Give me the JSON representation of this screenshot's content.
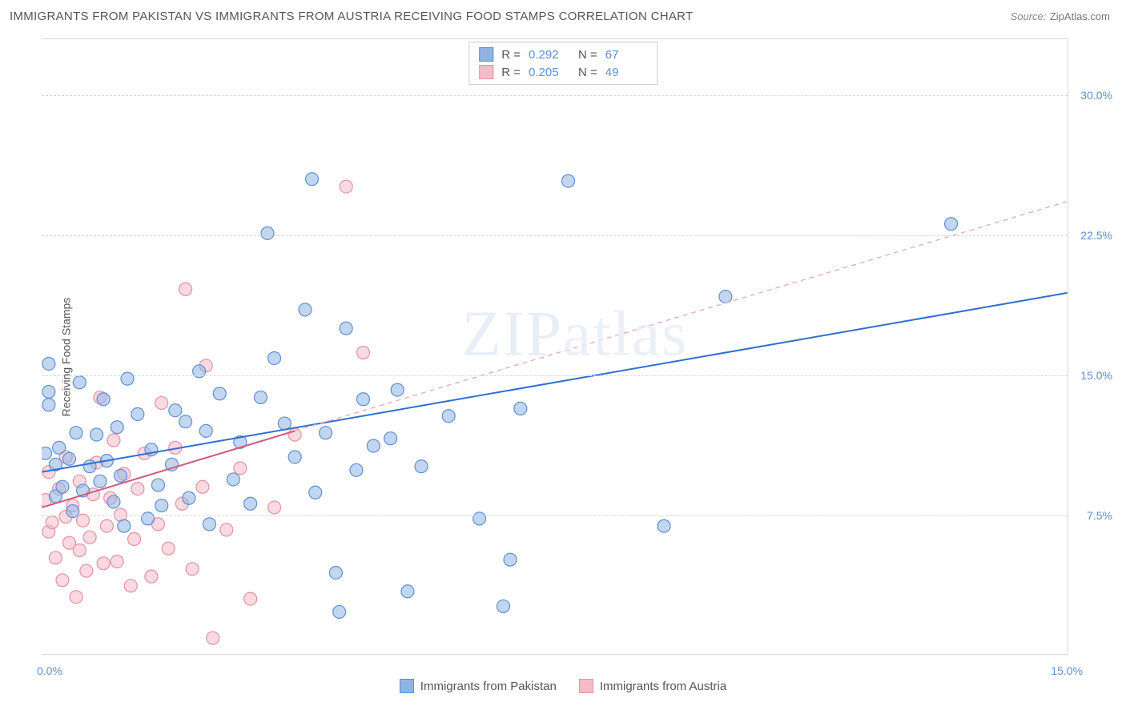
{
  "title": "IMMIGRANTS FROM PAKISTAN VS IMMIGRANTS FROM AUSTRIA RECEIVING FOOD STAMPS CORRELATION CHART",
  "source_label": "Source:",
  "source_name": "ZipAtlas.com",
  "y_axis_label": "Receiving Food Stamps",
  "watermark": "ZIPatlas",
  "chart": {
    "type": "scatter",
    "xlim": [
      0,
      15
    ],
    "ylim": [
      0,
      33
    ],
    "x_ticks": [
      {
        "v": 0,
        "label": "0.0%"
      },
      {
        "v": 15,
        "label": "15.0%"
      }
    ],
    "y_ticks": [
      {
        "v": 7.5,
        "label": "7.5%"
      },
      {
        "v": 15,
        "label": "15.0%"
      },
      {
        "v": 22.5,
        "label": "22.5%"
      },
      {
        "v": 30,
        "label": "30.0%"
      }
    ],
    "grid_color": "#d5d5d5",
    "background_color": "#ffffff",
    "marker_radius": 8,
    "marker_opacity": 0.55,
    "series": [
      {
        "name": "Immigrants from Pakistan",
        "color": "#8fb4e3",
        "stroke": "#5b8fd6",
        "r_label": "R =",
        "r_value": "0.292",
        "n_label": "N =",
        "n_value": "67",
        "trend": {
          "x1": 0,
          "y1": 9.8,
          "x2": 15,
          "y2": 19.4,
          "color": "#2e6fd1",
          "dash": "none",
          "width": 2
        },
        "points": [
          [
            0.05,
            10.8
          ],
          [
            0.1,
            13.4
          ],
          [
            0.1,
            14.1
          ],
          [
            0.1,
            15.6
          ],
          [
            0.2,
            8.5
          ],
          [
            0.2,
            10.2
          ],
          [
            0.25,
            11.1
          ],
          [
            0.3,
            9.0
          ],
          [
            0.4,
            10.5
          ],
          [
            0.45,
            7.7
          ],
          [
            0.5,
            11.9
          ],
          [
            0.55,
            14.6
          ],
          [
            0.6,
            8.8
          ],
          [
            0.7,
            10.1
          ],
          [
            0.8,
            11.8
          ],
          [
            0.85,
            9.3
          ],
          [
            0.9,
            13.7
          ],
          [
            0.95,
            10.4
          ],
          [
            1.05,
            8.2
          ],
          [
            1.1,
            12.2
          ],
          [
            1.15,
            9.6
          ],
          [
            1.2,
            6.9
          ],
          [
            1.25,
            14.8
          ],
          [
            1.4,
            12.9
          ],
          [
            1.55,
            7.3
          ],
          [
            1.6,
            11.0
          ],
          [
            1.7,
            9.1
          ],
          [
            1.75,
            8.0
          ],
          [
            1.9,
            10.2
          ],
          [
            1.95,
            13.1
          ],
          [
            2.1,
            12.5
          ],
          [
            2.15,
            8.4
          ],
          [
            2.3,
            15.2
          ],
          [
            2.4,
            12.0
          ],
          [
            2.45,
            7.0
          ],
          [
            2.6,
            14.0
          ],
          [
            2.8,
            9.4
          ],
          [
            2.9,
            11.4
          ],
          [
            3.05,
            8.1
          ],
          [
            3.2,
            13.8
          ],
          [
            3.3,
            22.6
          ],
          [
            3.4,
            15.9
          ],
          [
            3.55,
            12.4
          ],
          [
            3.7,
            10.6
          ],
          [
            3.95,
            25.5
          ],
          [
            4.0,
            8.7
          ],
          [
            4.15,
            11.9
          ],
          [
            4.3,
            4.4
          ],
          [
            4.35,
            2.3
          ],
          [
            4.45,
            17.5
          ],
          [
            4.6,
            9.9
          ],
          [
            4.7,
            13.7
          ],
          [
            5.1,
            11.6
          ],
          [
            5.2,
            14.2
          ],
          [
            5.35,
            3.4
          ],
          [
            5.55,
            10.1
          ],
          [
            5.95,
            12.8
          ],
          [
            6.4,
            7.3
          ],
          [
            6.75,
            2.6
          ],
          [
            6.85,
            5.1
          ],
          [
            7.0,
            13.2
          ],
          [
            7.7,
            25.4
          ],
          [
            9.1,
            6.9
          ],
          [
            10.0,
            19.2
          ],
          [
            13.3,
            23.1
          ],
          [
            4.85,
            11.2
          ],
          [
            3.85,
            18.5
          ]
        ]
      },
      {
        "name": "Immigrants from Austria",
        "color": "#f4bcc7",
        "stroke": "#e58fa3",
        "r_label": "R =",
        "r_value": "0.205",
        "n_label": "N =",
        "n_value": "49",
        "trend_solid": {
          "x1": 0,
          "y1": 7.9,
          "x2": 3.7,
          "y2": 12.0,
          "color": "#d15a7a",
          "dash": "none",
          "width": 2
        },
        "trend_dash": {
          "x1": 3.7,
          "y1": 12.0,
          "x2": 15,
          "y2": 24.3,
          "color": "#e9a7b6",
          "dash": "6,5",
          "width": 1.3
        },
        "points": [
          [
            0.05,
            8.3
          ],
          [
            0.1,
            6.6
          ],
          [
            0.1,
            9.8
          ],
          [
            0.15,
            7.1
          ],
          [
            0.2,
            5.2
          ],
          [
            0.25,
            8.9
          ],
          [
            0.3,
            4.0
          ],
          [
            0.35,
            7.4
          ],
          [
            0.35,
            10.6
          ],
          [
            0.4,
            6.0
          ],
          [
            0.45,
            8.0
          ],
          [
            0.5,
            3.1
          ],
          [
            0.55,
            5.6
          ],
          [
            0.55,
            9.3
          ],
          [
            0.6,
            7.2
          ],
          [
            0.65,
            4.5
          ],
          [
            0.7,
            6.3
          ],
          [
            0.75,
            8.6
          ],
          [
            0.8,
            10.3
          ],
          [
            0.85,
            13.8
          ],
          [
            0.9,
            4.9
          ],
          [
            0.95,
            6.9
          ],
          [
            1.0,
            8.4
          ],
          [
            1.05,
            11.5
          ],
          [
            1.1,
            5.0
          ],
          [
            1.15,
            7.5
          ],
          [
            1.2,
            9.7
          ],
          [
            1.3,
            3.7
          ],
          [
            1.35,
            6.2
          ],
          [
            1.4,
            8.9
          ],
          [
            1.5,
            10.8
          ],
          [
            1.6,
            4.2
          ],
          [
            1.7,
            7.0
          ],
          [
            1.75,
            13.5
          ],
          [
            1.85,
            5.7
          ],
          [
            1.95,
            11.1
          ],
          [
            2.05,
            8.1
          ],
          [
            2.1,
            19.6
          ],
          [
            2.2,
            4.6
          ],
          [
            2.35,
            9.0
          ],
          [
            2.4,
            15.5
          ],
          [
            2.5,
            0.9
          ],
          [
            2.7,
            6.7
          ],
          [
            2.9,
            10.0
          ],
          [
            3.05,
            3.0
          ],
          [
            3.4,
            7.9
          ],
          [
            3.7,
            11.8
          ],
          [
            4.45,
            25.1
          ],
          [
            4.7,
            16.2
          ]
        ]
      }
    ]
  }
}
